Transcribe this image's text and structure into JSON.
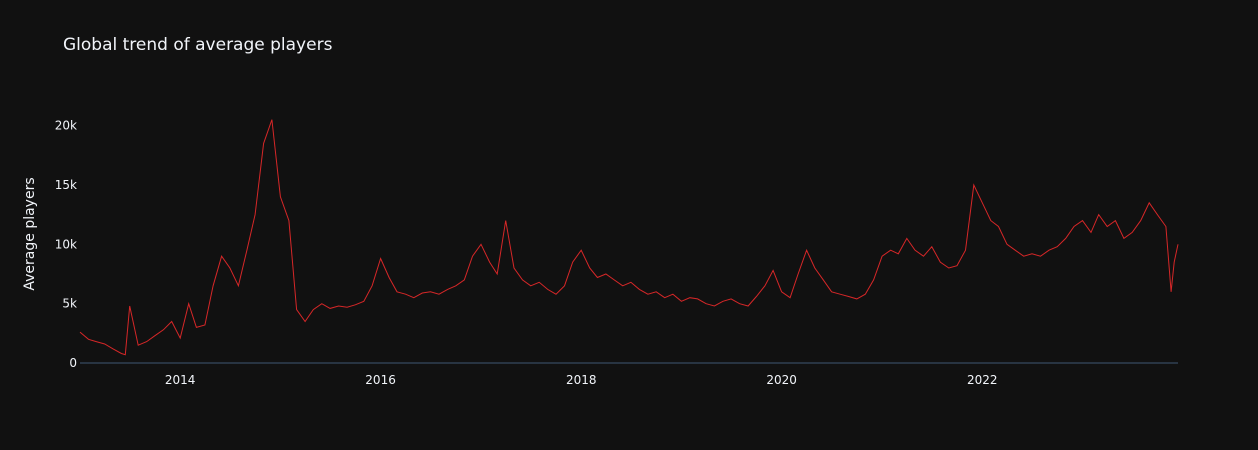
{
  "chart_data": {
    "type": "line",
    "title": "Global trend of average players",
    "xlabel": "",
    "ylabel": "Average players",
    "xlim": [
      "2013-01-01",
      "2023-12-15"
    ],
    "ylim": [
      0,
      23000
    ],
    "x_ticks": [
      "2014",
      "2016",
      "2018",
      "2020",
      "2022"
    ],
    "y_ticks": [
      "0",
      "5k",
      "10k",
      "15k",
      "20k"
    ],
    "y_tick_values": [
      0,
      5000,
      10000,
      15000,
      20000
    ],
    "grid": false,
    "colors": {
      "background": "#111111",
      "line": "#d62728",
      "axis": "#283442"
    },
    "series": [
      {
        "x": [
          "2013-01-01",
          "2013-02-01",
          "2013-03-01",
          "2013-04-01",
          "2013-05-01",
          "2013-06-01",
          "2013-06-15",
          "2013-07-01",
          "2013-08-01",
          "2013-09-01",
          "2013-10-01",
          "2013-11-01",
          "2013-12-01",
          "2014-01-01",
          "2014-02-01",
          "2014-03-01",
          "2014-04-01",
          "2014-05-01",
          "2014-06-01",
          "2014-07-01",
          "2014-08-01",
          "2014-09-01",
          "2014-10-01",
          "2014-11-01",
          "2014-12-01",
          "2015-01-01",
          "2015-02-01",
          "2015-03-01",
          "2015-04-01",
          "2015-05-01",
          "2015-06-01",
          "2015-07-01",
          "2015-08-01",
          "2015-09-01",
          "2015-10-01",
          "2015-11-01",
          "2015-12-01",
          "2016-01-01",
          "2016-02-01",
          "2016-03-01",
          "2016-04-01",
          "2016-05-01",
          "2016-06-01",
          "2016-07-01",
          "2016-08-01",
          "2016-09-01",
          "2016-10-01",
          "2016-11-01",
          "2016-12-01",
          "2017-01-01",
          "2017-02-01",
          "2017-03-01",
          "2017-04-01",
          "2017-05-01",
          "2017-06-01",
          "2017-07-01",
          "2017-08-01",
          "2017-09-01",
          "2017-10-01",
          "2017-11-01",
          "2017-12-01",
          "2018-01-01",
          "2018-02-01",
          "2018-03-01",
          "2018-04-01",
          "2018-05-01",
          "2018-06-01",
          "2018-07-01",
          "2018-08-01",
          "2018-09-01",
          "2018-10-01",
          "2018-11-01",
          "2018-12-01",
          "2019-01-01",
          "2019-02-01",
          "2019-03-01",
          "2019-04-01",
          "2019-05-01",
          "2019-06-01",
          "2019-07-01",
          "2019-08-01",
          "2019-09-01",
          "2019-10-01",
          "2019-11-01",
          "2019-12-01",
          "2020-01-01",
          "2020-02-01",
          "2020-03-01",
          "2020-04-01",
          "2020-05-01",
          "2020-06-01",
          "2020-07-01",
          "2020-08-01",
          "2020-09-01",
          "2020-10-01",
          "2020-11-01",
          "2020-12-01",
          "2021-01-01",
          "2021-02-01",
          "2021-03-01",
          "2021-04-01",
          "2021-05-01",
          "2021-06-01",
          "2021-07-01",
          "2021-08-01",
          "2021-09-01",
          "2021-10-01",
          "2021-11-01",
          "2021-12-01",
          "2022-01-01",
          "2022-02-01",
          "2022-03-01",
          "2022-04-01",
          "2022-05-01",
          "2022-06-01",
          "2022-07-01",
          "2022-08-01",
          "2022-09-01",
          "2022-10-01",
          "2022-11-01",
          "2022-12-01",
          "2023-01-01",
          "2023-02-01",
          "2023-03-01",
          "2023-04-01",
          "2023-05-01",
          "2023-06-01",
          "2023-07-01",
          "2023-08-01",
          "2023-09-01",
          "2023-10-01",
          "2023-11-01",
          "2023-11-20",
          "2023-12-01",
          "2023-12-15"
        ],
        "values": [
          2600,
          2000,
          1800,
          1600,
          1200,
          800,
          700,
          4800,
          1500,
          1800,
          2300,
          2800,
          3500,
          2100,
          5000,
          3000,
          3200,
          6500,
          9000,
          8000,
          6500,
          9500,
          12500,
          18500,
          20500,
          14000,
          12000,
          4500,
          3500,
          4500,
          5000,
          4600,
          4800,
          4700,
          4900,
          5200,
          6500,
          8800,
          7200,
          6000,
          5800,
          5500,
          5900,
          6000,
          5800,
          6200,
          6500,
          7000,
          9000,
          10000,
          8500,
          7500,
          12000,
          8000,
          7000,
          6500,
          6800,
          6200,
          5800,
          6500,
          8500,
          9500,
          8000,
          7200,
          7500,
          7000,
          6500,
          6800,
          6200,
          5800,
          6000,
          5500,
          5800,
          5200,
          5500,
          5400,
          5000,
          4800,
          5200,
          5400,
          5000,
          4800,
          5600,
          6500,
          7800,
          6000,
          5500,
          7500,
          9500,
          8000,
          7000,
          6000,
          5800,
          5600,
          5400,
          5800,
          7000,
          9000,
          9500,
          9200,
          10500,
          9500,
          9000,
          9800,
          8500,
          8000,
          8200,
          9500,
          15000,
          13500,
          12000,
          11500,
          10000,
          9500,
          9000,
          9200,
          9000,
          9500,
          9800,
          10500,
          11500,
          12000,
          11000,
          12500,
          11500,
          12000,
          10500,
          11000,
          12000,
          13500,
          12500,
          11500,
          6000,
          8500,
          10000
        ]
      }
    ]
  }
}
